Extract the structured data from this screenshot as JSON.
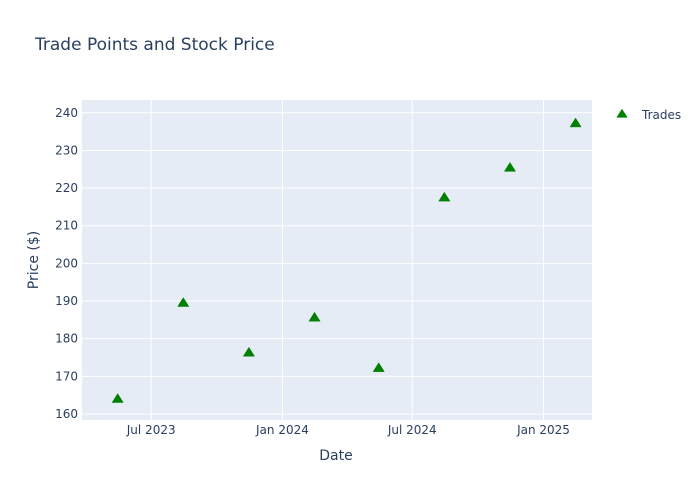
{
  "chart_data": {
    "type": "scatter",
    "title": "Trade Points and Stock Price",
    "xlabel": "Date",
    "ylabel": "Price ($)",
    "x_axis_type": "date",
    "xlim": [
      "2023-03-26",
      "2025-03-10"
    ],
    "ylim": [
      158.4,
      243.4
    ],
    "x_ticks": [
      {
        "value": "2023-07-01",
        "label": "Jul 2023"
      },
      {
        "value": "2024-01-01",
        "label": "Jan 2024"
      },
      {
        "value": "2024-07-01",
        "label": "Jul 2024"
      },
      {
        "value": "2025-01-01",
        "label": "Jan 2025"
      }
    ],
    "y_ticks": [
      {
        "value": 160,
        "label": "160"
      },
      {
        "value": 170,
        "label": "170"
      },
      {
        "value": 180,
        "label": "180"
      },
      {
        "value": 190,
        "label": "190"
      },
      {
        "value": 200,
        "label": "200"
      },
      {
        "value": 210,
        "label": "210"
      },
      {
        "value": 220,
        "label": "220"
      },
      {
        "value": 230,
        "label": "230"
      },
      {
        "value": 240,
        "label": "240"
      }
    ],
    "grid": true,
    "legend_position": "top-right",
    "series": [
      {
        "name": "Trades",
        "marker": "triangle-up",
        "color": "#008000",
        "points": [
          {
            "x": "2023-05-15",
            "y": 164.0
          },
          {
            "x": "2023-08-15",
            "y": 189.5
          },
          {
            "x": "2023-11-15",
            "y": 176.3
          },
          {
            "x": "2024-02-15",
            "y": 185.6
          },
          {
            "x": "2024-05-15",
            "y": 172.2
          },
          {
            "x": "2024-08-15",
            "y": 217.5
          },
          {
            "x": "2024-11-15",
            "y": 225.4
          },
          {
            "x": "2025-02-15",
            "y": 237.2
          }
        ]
      }
    ]
  },
  "style": {
    "plot_bg": "#e5ecf6",
    "grid_color": "#ffffff",
    "text_color": "#2a3f5f"
  }
}
